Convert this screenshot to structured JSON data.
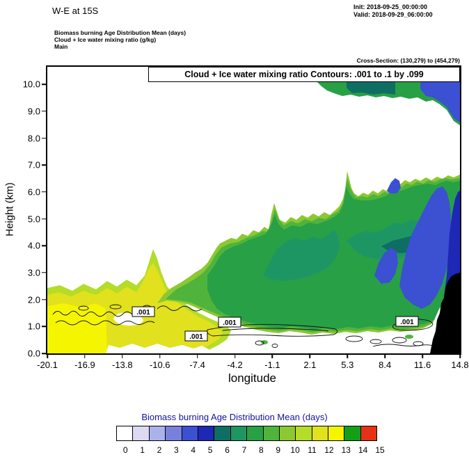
{
  "header": {
    "title": "W-E at 15S",
    "init": "Init: 2018-09-25_00:00:00",
    "valid": "Valid: 2018-09-29_06:00:00",
    "field_lines": [
      "Biomass burning Age Distribution Mean   (days)",
      "Cloud + Ice water mixing ratio   (g/kg)",
      "Main"
    ],
    "cross_section": "Cross-Section: (130,279) to (454,279)"
  },
  "chart_data": {
    "type": "heatmap",
    "subtype": "filled-contour vertical cross-section with line contours overlaid",
    "title": "Cloud + Ice water mixing ratio Contours: .001 to .1 by .099",
    "xlabel": "longitude",
    "ylabel": "Height (km)",
    "x_ticks": [
      "-20.1",
      "-16.9",
      "-13.8",
      "-10.6",
      "-7.4",
      "-4.2",
      "-1.1",
      "2.1",
      "5.3",
      "8.4",
      "11.6",
      "14.8"
    ],
    "y_ticks": [
      "0.0",
      "1.0",
      "2.0",
      "3.0",
      "4.0",
      "5.0",
      "6.0",
      "7.0",
      "8.0",
      "9.0",
      "10.0"
    ],
    "xlim": [
      -20.1,
      14.8
    ],
    "ylim_km": [
      0,
      10.65
    ],
    "grid": false,
    "contour_label": ".001",
    "colorbar": {
      "title": "Biomass burning Age Distribution Mean  (days)",
      "title_color": "#14149b",
      "position": "bottom",
      "values": [
        "0",
        "1",
        "2",
        "3",
        "4",
        "5",
        "6",
        "7",
        "8",
        "9",
        "10",
        "11",
        "12",
        "13",
        "14",
        "15"
      ],
      "colors": [
        "#ffffff",
        "#dcd9f2",
        "#aab2ea",
        "#7880dc",
        "#3c50d2",
        "#1e28b4",
        "#0f6e64",
        "#1e9664",
        "#28a046",
        "#50b43c",
        "#8cc832",
        "#b4dc28",
        "#e1e11e",
        "#f5f500",
        "#14a014",
        "#e63214"
      ]
    },
    "regions": [
      {
        "age_days": "11-13",
        "color": "yellow",
        "extent": "boundary layer west of lon -5, surface to ~2.2 km"
      },
      {
        "age_days": "8-10",
        "color": "green",
        "extent": "smoke plume rising from ~2 km near lon -10 up to ~6.5-7 km east of lon 2; also band at 9.5-10.2 km east of lon 5"
      },
      {
        "age_days": "3-5",
        "color": "blue",
        "extent": "mid-levels ~2.5-6.5 km between lon 8 and 14.8, and east end of the upper band"
      },
      {
        "age_days": "terrain mask",
        "color": "black",
        "extent": "surface to ~3 km east of lon ~13"
      }
    ]
  }
}
